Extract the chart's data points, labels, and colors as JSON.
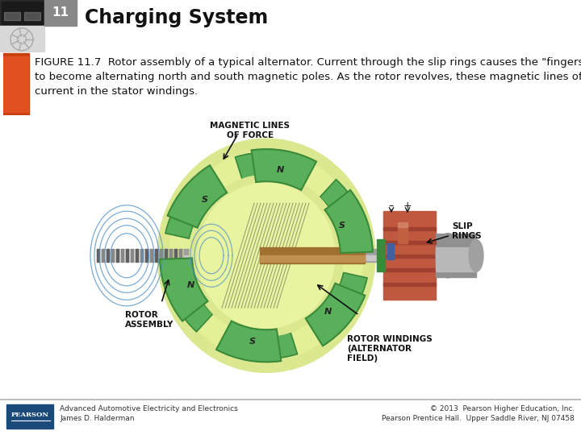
{
  "title": "Charging System",
  "chapter_num": "11",
  "figure_caption": "FIGURE 11.7  Rotor assembly of a typical alternator. Current through the slip rings causes the \"fingers\" of the rotor to become alternating north and south magnetic poles. As the rotor revolves, these magnetic lines of of force induce a current in the stator windings.",
  "figure_caption_bold": "FIGURE 11.7",
  "footer_left_line1": "Advanced Automotive Electricity and Electronics",
  "footer_left_line2": "James D. Halderman",
  "footer_right_line1": "© 2013  Pearson Higher Education, Inc.",
  "footer_right_line2": "Pearson Prentice Hall.  Upper Saddle River, NJ 07458",
  "bg_color": "#ffffff",
  "caption_font_size": 9.5,
  "title_font_size": 17,
  "footer_font_size": 6.5,
  "label_font_size": 7.5,
  "ann_label_color": "#111111",
  "green_dark": "#3a8a3a",
  "green_mid": "#5ab05a",
  "green_light": "#c8dc78",
  "green_pale": "#dce890",
  "grey_shaft": "#909090",
  "grey_shaft_light": "#c0c0c0",
  "rust_red": "#c05840",
  "rust_dark": "#a04030",
  "blue_lines": "#5090c8",
  "brown_coil": "#a07030",
  "header_box_color": "#606060",
  "header_num_color": "#808080"
}
